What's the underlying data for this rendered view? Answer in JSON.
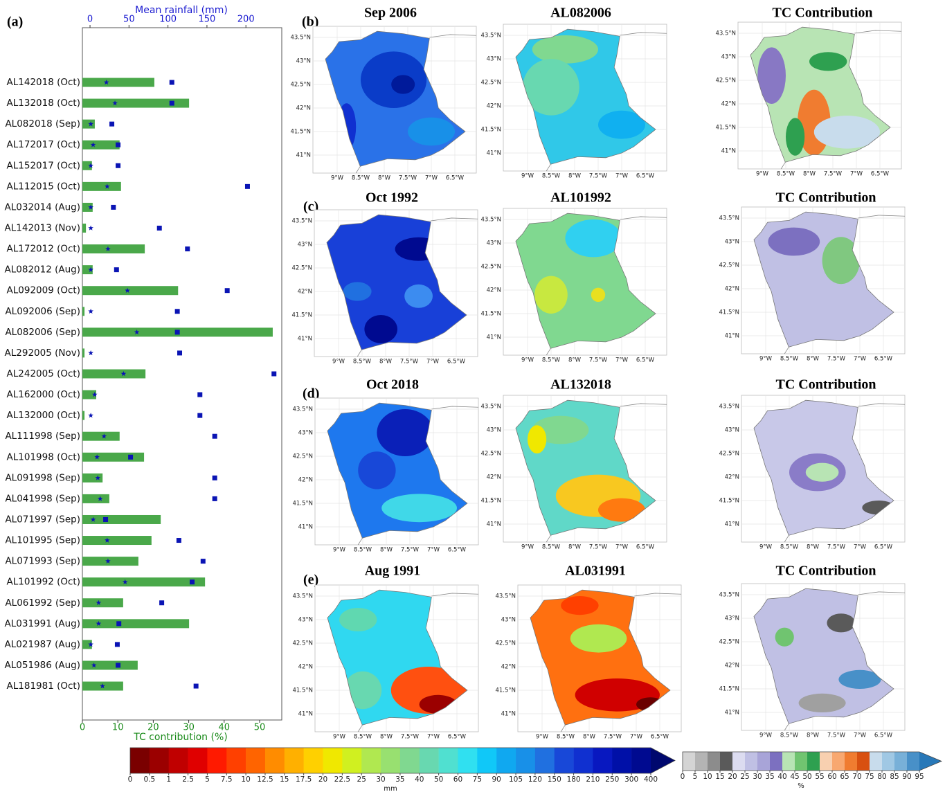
{
  "chart_data": [
    {
      "type": "bar",
      "orientation": "horizontal",
      "panel_label": "(a)",
      "xlabel": "TC contribution (%)",
      "xlim": [
        0,
        56.25
      ],
      "xticks": [
        0,
        10,
        20,
        30,
        40,
        50
      ],
      "xcolor": "#1a8a1a",
      "x2label": "Mean rainfall (mm)",
      "x2lim": [
        -9.8,
        246
      ],
      "x2ticks": [
        0,
        50,
        100,
        150,
        200
      ],
      "x2color": "#1a1ad0",
      "categories": [
        "AL142018 (Oct)",
        "AL132018 (Oct)",
        "AL082018 (Sep)",
        "AL172017 (Oct)",
        "AL152017 (Oct)",
        "AL112015 (Oct)",
        "AL032014 (Aug)",
        "AL142013 (Nov)",
        "AL172012 (Oct)",
        "AL082012 (Aug)",
        "AL092009 (Oct)",
        "AL092006 (Sep)",
        "AL082006 (Sep)",
        "AL292005 (Nov)",
        "AL242005 (Oct)",
        "AL162000 (Oct)",
        "AL132000 (Oct)",
        "AL111998 (Sep)",
        "AL101998 (Oct)",
        "AL091998 (Sep)",
        "AL041998 (Sep)",
        "AL071997 (Sep)",
        "AL101995 (Sep)",
        "AL071993 (Sep)",
        "AL101992 (Oct)",
        "AL061992 (Sep)",
        "AL031991 (Aug)",
        "AL021987 (Aug)",
        "AL051986 (Aug)",
        "AL181981 (Oct)"
      ],
      "series": [
        {
          "kind": "bar",
          "axis": "x",
          "color": "#4aa84a",
          "values": [
            20.3,
            30.1,
            3.5,
            10.5,
            2.7,
            10.9,
            2.9,
            1.0,
            17.6,
            2.9,
            27.0,
            0.6,
            53.7,
            0.6,
            17.8,
            3.9,
            0.6,
            10.5,
            17.4,
            5.7,
            7.6,
            22.1,
            19.5,
            15.8,
            34.6,
            11.5,
            30.1,
            2.7,
            15.6,
            11.5
          ]
        },
        {
          "kind": "star",
          "axis": "x2",
          "color": "#0a14b4",
          "values": [
            21,
            32,
            1,
            4,
            1,
            22,
            1,
            1,
            23,
            1,
            48,
            1,
            60,
            1,
            43,
            6,
            1,
            18,
            9,
            10,
            13,
            4,
            22,
            23,
            45,
            11,
            11,
            1,
            5,
            16
          ]
        },
        {
          "kind": "square",
          "axis": "x2",
          "color": "#0a14b4",
          "values": [
            105,
            105,
            28,
            36,
            36,
            202,
            30,
            89,
            125,
            34,
            176,
            112,
            112,
            115,
            236,
            141,
            141,
            160,
            52,
            160,
            160,
            20,
            114,
            145,
            131,
            92,
            37,
            35,
            36,
            136
          ]
        }
      ]
    },
    {
      "type": "map",
      "xticks": [
        {
          "value": -9,
          "label": "9°W"
        },
        {
          "value": -8.5,
          "label": "8.5°W"
        },
        {
          "value": -8,
          "label": "8°W"
        },
        {
          "value": -7.5,
          "label": "7.5°W"
        },
        {
          "value": -7,
          "label": "7°W"
        },
        {
          "value": -6.5,
          "label": "6.5°W"
        }
      ],
      "yticks": [
        {
          "value": 43.5,
          "label": "43.5°N"
        },
        {
          "value": 43,
          "label": "43°N"
        },
        {
          "value": 42.5,
          "label": "42.5°N"
        },
        {
          "value": 42,
          "label": "42°N"
        },
        {
          "value": 41.5,
          "label": "41.5°N"
        },
        {
          "value": 41,
          "label": "41°N"
        }
      ],
      "rows": [
        {
          "label": "(b)",
          "maps": [
            {
              "title": "Sep 2006"
            },
            {
              "title": "AL082006"
            },
            {
              "title": "TC Contribution"
            }
          ]
        },
        {
          "label": "(c)",
          "maps": [
            {
              "title": "Oct 1992"
            },
            {
              "title": "AL101992"
            },
            {
              "title": "TC Contribution"
            }
          ]
        },
        {
          "label": "(d)",
          "maps": [
            {
              "title": "Oct 2018"
            },
            {
              "title": "AL132018"
            },
            {
              "title": "TC Contribution"
            }
          ]
        },
        {
          "label": "(e)",
          "maps": [
            {
              "title": "Aug 1991"
            },
            {
              "title": "AL031991"
            },
            {
              "title": "TC Contribution"
            }
          ]
        }
      ]
    },
    {
      "type": "colorbar",
      "label": "mm",
      "ticks": [
        0,
        0.5,
        1,
        2.5,
        5,
        7.5,
        10,
        12.5,
        15,
        17.5,
        20,
        22.5,
        25,
        30,
        35,
        40,
        50,
        60,
        75,
        90,
        105,
        120,
        150,
        180,
        210,
        250,
        300,
        400
      ],
      "colors": [
        "#7a0000",
        "#9b0000",
        "#c00000",
        "#e00000",
        "#ff1a00",
        "#ff4000",
        "#ff6400",
        "#ff8c00",
        "#ffb000",
        "#ffd000",
        "#f0e800",
        "#d0f020",
        "#b0e850",
        "#98e070",
        "#80d890",
        "#68d8b0",
        "#50e0d0",
        "#30e0f0",
        "#10c8f8",
        "#10a8f0",
        "#1890e8",
        "#2070e0",
        "#1848d8",
        "#1030d0",
        "#0818c0",
        "#0010a8",
        "#000a90",
        "#00086e"
      ]
    },
    {
      "type": "colorbar",
      "label": "%",
      "ticks": [
        0,
        5,
        10,
        15,
        20,
        25,
        30,
        35,
        40,
        45,
        50,
        55,
        60,
        65,
        70,
        75,
        80,
        85,
        90,
        95
      ],
      "colors": [
        "#d4d4d4",
        "#b4b4b4",
        "#8c8c8c",
        "#5a5a5a",
        "#dcdcf0",
        "#c0c0e4",
        "#a8a4d8",
        "#7c70c0",
        "#b8e4b4",
        "#70c470",
        "#2ea050",
        "#f8d0b0",
        "#f8a870",
        "#f07c30",
        "#d85010",
        "#c8dcec",
        "#a0c8e4",
        "#78b0d8",
        "#4890c8",
        "#2878b8"
      ]
    }
  ]
}
